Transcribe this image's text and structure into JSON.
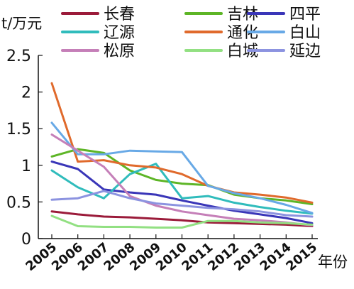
{
  "chart_data": {
    "type": "line",
    "title": "",
    "ylabel": "t/万元",
    "xlabel": "年份",
    "ylim": [
      0,
      2.5
    ],
    "yticks": [
      "0",
      "0.5",
      "1",
      "1.5",
      "2",
      "2.5"
    ],
    "ytick_values": [
      0,
      0.5,
      1,
      1.5,
      2,
      2.5
    ],
    "categories": [
      "2005",
      "2006",
      "2007",
      "2008",
      "2009",
      "2010",
      "2011",
      "2012",
      "2013",
      "2014",
      "2015"
    ],
    "grid": false,
    "legend_position": "top",
    "series": [
      {
        "name": "长春",
        "color": "#9b1b3a",
        "values": [
          0.37,
          0.33,
          0.3,
          0.29,
          0.27,
          0.25,
          0.22,
          0.21,
          0.2,
          0.19,
          0.17
        ]
      },
      {
        "name": "吉林",
        "color": "#5db526",
        "values": [
          1.12,
          1.22,
          1.17,
          0.93,
          0.8,
          0.75,
          0.73,
          0.6,
          0.55,
          0.52,
          0.47
        ]
      },
      {
        "name": "四平",
        "color": "#3a36b8",
        "values": [
          1.05,
          0.95,
          0.67,
          0.63,
          0.6,
          0.52,
          0.45,
          0.38,
          0.33,
          0.28,
          0.21
        ]
      },
      {
        "name": "辽源",
        "color": "#30bcbc",
        "values": [
          0.93,
          0.7,
          0.55,
          0.88,
          1.02,
          0.55,
          0.58,
          0.49,
          0.43,
          0.38,
          0.34
        ]
      },
      {
        "name": "通化",
        "color": "#e06a2c",
        "values": [
          2.12,
          1.05,
          1.07,
          1.0,
          0.97,
          0.88,
          0.72,
          0.63,
          0.6,
          0.56,
          0.49
        ]
      },
      {
        "name": "白山",
        "color": "#68a9e6",
        "values": [
          1.58,
          1.15,
          1.15,
          1.2,
          1.19,
          1.18,
          0.72,
          0.62,
          0.55,
          0.46,
          0.35
        ]
      },
      {
        "name": "松原",
        "color": "#c57fb8",
        "values": [
          1.42,
          1.2,
          0.98,
          0.58,
          0.45,
          0.37,
          0.32,
          0.27,
          0.25,
          0.22,
          0.18
        ]
      },
      {
        "name": "白城",
        "color": "#92e082",
        "values": [
          0.31,
          0.17,
          0.16,
          0.16,
          0.15,
          0.15,
          0.24,
          0.24,
          0.22,
          0.21,
          0.19
        ]
      },
      {
        "name": "延边",
        "color": "#8c93e0",
        "values": [
          0.53,
          0.55,
          0.65,
          0.55,
          0.48,
          0.45,
          0.42,
          0.4,
          0.37,
          0.32,
          0.3
        ]
      }
    ]
  }
}
